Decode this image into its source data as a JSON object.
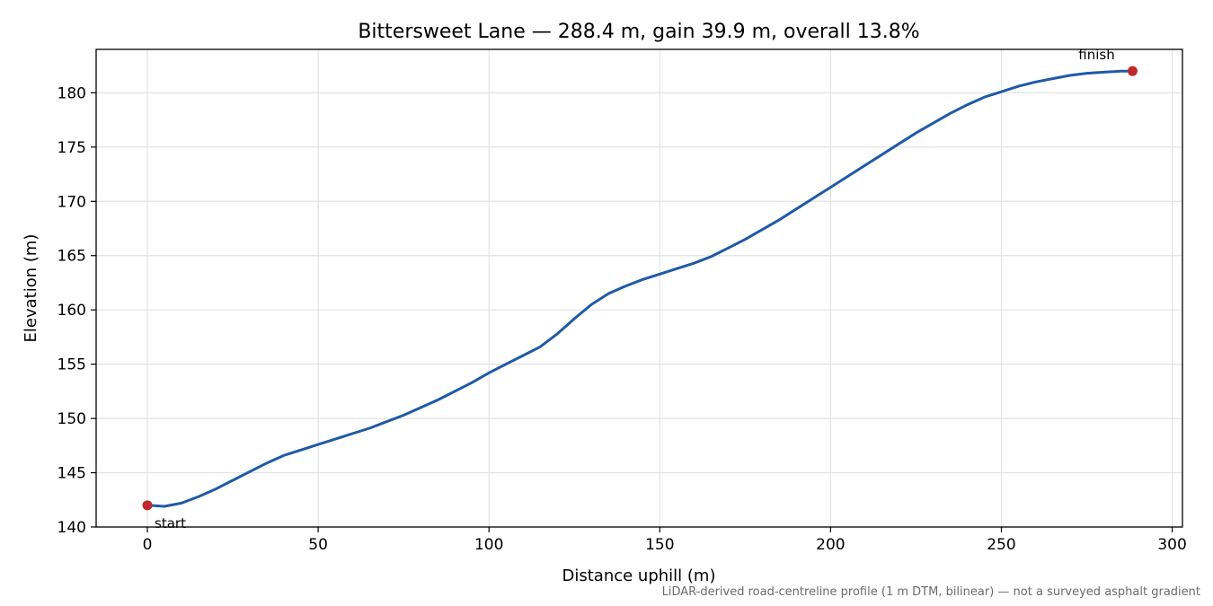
{
  "chart_data": {
    "type": "line",
    "title": "Bittersweet Lane — 288.4 m, gain 39.9 m, overall 13.8%",
    "xlabel": "Distance uphill (m)",
    "ylabel": "Elevation (m)",
    "xlim": [
      -15,
      303
    ],
    "ylim": [
      140,
      184
    ],
    "xticks": [
      0,
      50,
      100,
      150,
      200,
      250,
      300
    ],
    "yticks": [
      140,
      145,
      150,
      155,
      160,
      165,
      170,
      175,
      180
    ],
    "grid": true,
    "line_color": "#1f5aa6",
    "marker_color": "#c0282d",
    "series": [
      {
        "x": [
          0,
          5,
          10,
          15,
          20,
          25,
          30,
          35,
          40,
          45,
          50,
          55,
          60,
          65,
          70,
          75,
          80,
          85,
          90,
          95,
          100,
          105,
          110,
          115,
          120,
          125,
          130,
          135,
          140,
          145,
          150,
          155,
          160,
          165,
          170,
          175,
          180,
          185,
          190,
          195,
          200,
          205,
          210,
          215,
          220,
          225,
          230,
          235,
          240,
          245,
          250,
          255,
          260,
          265,
          270,
          275,
          280,
          285,
          288.4
        ],
        "y": [
          142.0,
          141.9,
          142.2,
          142.8,
          143.5,
          144.3,
          145.1,
          145.9,
          146.6,
          147.1,
          147.6,
          148.1,
          148.6,
          149.1,
          149.7,
          150.3,
          151.0,
          151.7,
          152.5,
          153.3,
          154.2,
          155.0,
          155.8,
          156.6,
          157.8,
          159.2,
          160.5,
          161.5,
          162.2,
          162.8,
          163.3,
          163.8,
          164.3,
          164.9,
          165.7,
          166.5,
          167.4,
          168.3,
          169.3,
          170.3,
          171.3,
          172.3,
          173.3,
          174.3,
          175.3,
          176.3,
          177.2,
          178.1,
          178.9,
          179.6,
          180.1,
          180.6,
          181.0,
          181.3,
          181.6,
          181.8,
          181.9,
          182.0,
          182.0
        ]
      }
    ],
    "endpoints": [
      {
        "label": "start",
        "x": 0,
        "y": 142.0
      },
      {
        "label": "finish",
        "x": 288.4,
        "y": 182.0
      }
    ]
  },
  "caption": "LiDAR-derived road-centreline profile (1 m DTM, bilinear) — not a surveyed asphalt gradient"
}
